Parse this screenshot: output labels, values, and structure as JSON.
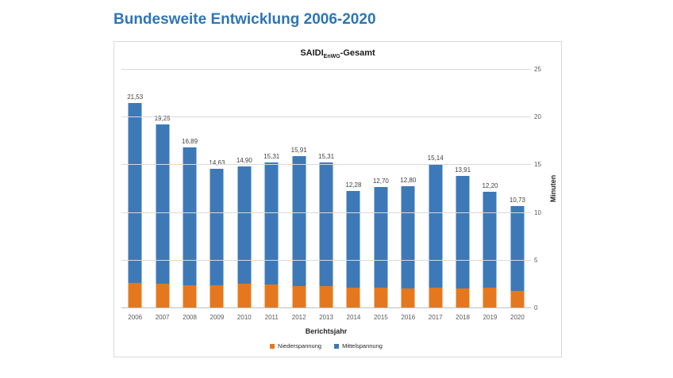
{
  "page": {
    "title": "Bundesweite Entwicklung 2006-2020"
  },
  "chart": {
    "title_main": "SAIDI",
    "title_subscript": "EnWG",
    "title_suffix": "-Gesamt",
    "xaxis_title": "Berichtsjahr",
    "yaxis_title": "Minuten",
    "legend": [
      {
        "label": "Niederspannung",
        "color": "#e5781e"
      },
      {
        "label": "Mittelspannung",
        "color": "#3d79b7"
      }
    ]
  },
  "chart_data": {
    "type": "bar",
    "stacked": true,
    "title": "SAIDI EnWG -Gesamt",
    "xlabel": "Berichtsjahr",
    "ylabel": "Minuten",
    "ylim": [
      0,
      25
    ],
    "yticks": [
      0,
      5,
      10,
      15,
      20,
      25
    ],
    "grid": true,
    "legend_position": "bottom",
    "categories": [
      "2006",
      "2007",
      "2008",
      "2009",
      "2010",
      "2011",
      "2012",
      "2013",
      "2014",
      "2015",
      "2016",
      "2017",
      "2018",
      "2019",
      "2020"
    ],
    "totals": [
      21.53,
      19.25,
      16.89,
      14.63,
      14.9,
      15.31,
      15.91,
      15.31,
      12.28,
      12.7,
      12.8,
      15.14,
      13.91,
      12.2,
      10.73
    ],
    "total_labels": [
      "21,53",
      "19,25",
      "16,89",
      "14,63",
      "14,90",
      "15,31",
      "15,91",
      "15,31",
      "12,28",
      "12,70",
      "12,80",
      "15,14",
      "13,91",
      "12,20",
      "10,73"
    ],
    "series": [
      {
        "name": "Niederspannung",
        "color": "#e5781e",
        "values": [
          2.7,
          2.55,
          2.45,
          2.4,
          2.6,
          2.5,
          2.35,
          2.35,
          2.15,
          2.2,
          2.05,
          2.15,
          2.1,
          2.2,
          1.85
        ]
      },
      {
        "name": "Mittelspannung",
        "color": "#3d79b7",
        "values": [
          18.83,
          16.7,
          14.44,
          12.23,
          12.3,
          12.81,
          13.56,
          12.96,
          10.13,
          10.5,
          10.75,
          12.99,
          11.81,
          10.0,
          8.88
        ]
      }
    ]
  }
}
